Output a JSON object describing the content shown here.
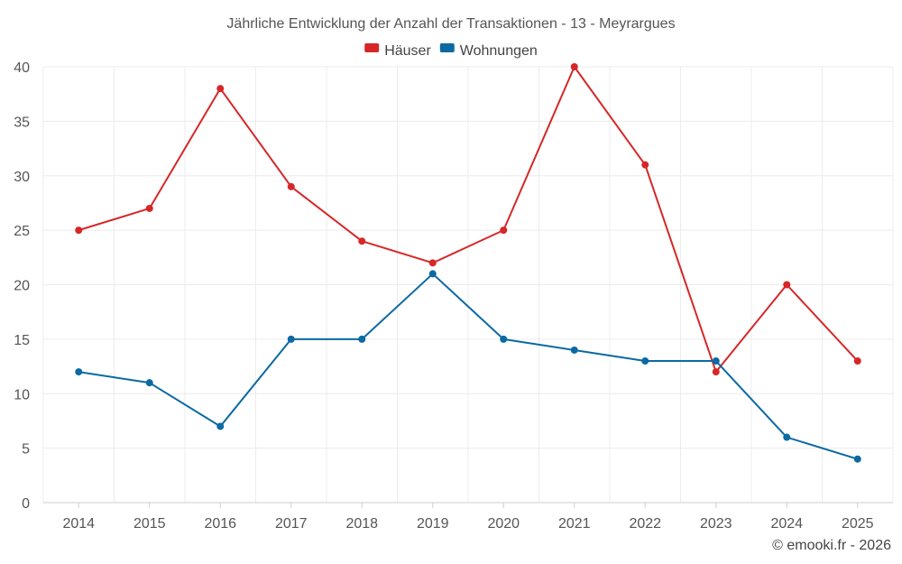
{
  "chart_data": {
    "type": "line",
    "title": "Jährliche Entwicklung der Anzahl der Transaktionen - 13 - Meyrargues",
    "categories": [
      "2014",
      "2015",
      "2016",
      "2017",
      "2018",
      "2019",
      "2020",
      "2021",
      "2022",
      "2023",
      "2024",
      "2025"
    ],
    "series": [
      {
        "name": "Häuser",
        "color": "#d62728",
        "values": [
          25,
          27,
          38,
          29,
          24,
          22,
          25,
          40,
          31,
          12,
          20,
          13
        ]
      },
      {
        "name": "Wohnungen",
        "color": "#0b6aa2",
        "values": [
          12,
          11,
          7,
          15,
          15,
          21,
          15,
          14,
          13,
          13,
          6,
          4
        ]
      }
    ],
    "ylim": [
      0,
      40
    ],
    "yticks": [
      0,
      5,
      10,
      15,
      20,
      25,
      30,
      35,
      40
    ],
    "xlabel": "",
    "ylabel": "",
    "grid": true,
    "legend_position": "top-center"
  },
  "credit": "© emooki.fr - 2026"
}
